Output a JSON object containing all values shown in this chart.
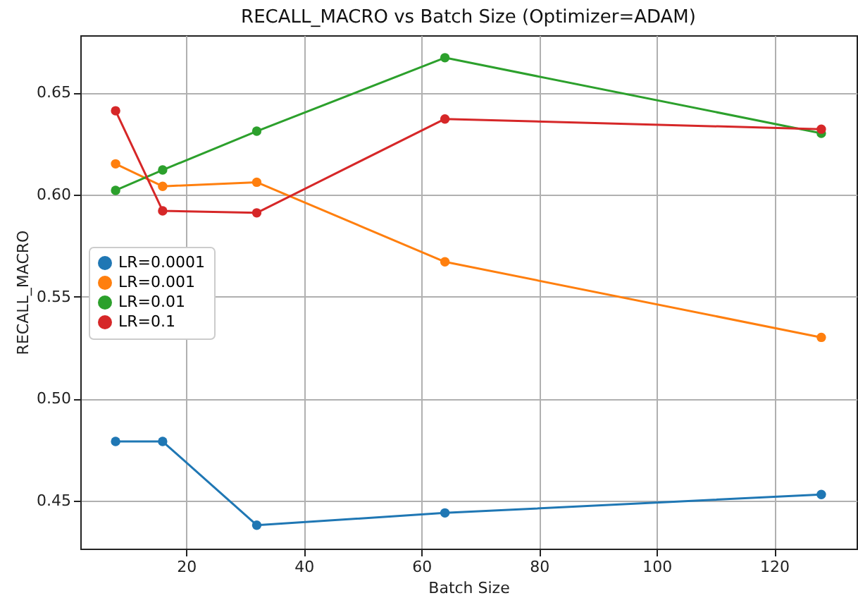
{
  "chart_data": {
    "type": "line",
    "title": "RECALL_MACRO vs Batch Size (Optimizer=ADAM)",
    "xlabel": "Batch Size",
    "ylabel": "RECALL_MACRO",
    "x": [
      8,
      16,
      32,
      64,
      128
    ],
    "series": [
      {
        "name": "LR=0.0001",
        "color": "#1f77b4",
        "values": [
          0.479,
          0.479,
          0.438,
          0.444,
          0.453
        ]
      },
      {
        "name": "LR=0.001",
        "color": "#ff7f0e",
        "values": [
          0.615,
          0.604,
          0.606,
          0.567,
          0.53
        ]
      },
      {
        "name": "LR=0.01",
        "color": "#2ca02c",
        "values": [
          0.602,
          0.612,
          0.631,
          0.667,
          0.63
        ]
      },
      {
        "name": "LR=0.1",
        "color": "#d62728",
        "values": [
          0.641,
          0.592,
          0.591,
          0.637,
          0.632
        ]
      }
    ],
    "xlim": [
      2,
      134
    ],
    "xticks": [
      20,
      40,
      60,
      80,
      100,
      120
    ],
    "ylim": [
      0.4265,
      0.678
    ],
    "yticks": [
      {
        "value": 0.45,
        "label": "0.45"
      },
      {
        "value": 0.5,
        "label": "0.50"
      },
      {
        "value": 0.55,
        "label": "0.55"
      },
      {
        "value": 0.6,
        "label": "0.60"
      },
      {
        "value": 0.65,
        "label": "0.65"
      }
    ],
    "grid": true,
    "legend": "left",
    "marker": "circle",
    "line_style": "solid"
  }
}
